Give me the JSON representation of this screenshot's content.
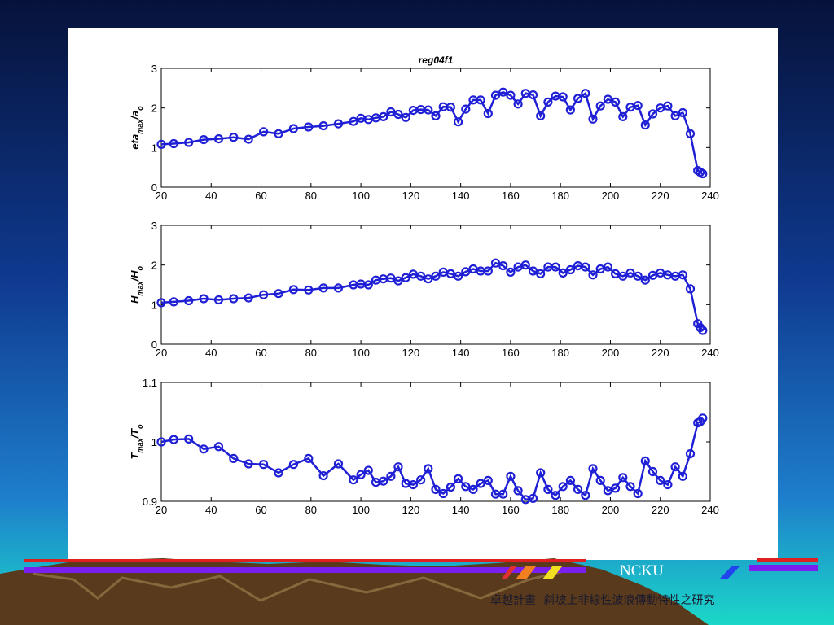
{
  "theme": {
    "background_top": "#0a1850",
    "background_bottom": "#19d6c8",
    "line_color": "#1f1fd6",
    "mountain_color": "#6b4a2a",
    "stripe_red": "#e02020",
    "stripe_purple": "#7a1ff0",
    "stripe_orange": "#f08020",
    "stripe_yellow": "#f0e020"
  },
  "footer": {
    "brand": "NCKU",
    "subtitle": "卓越計畫--斜坡上非線性波浪傳動特性之研究"
  },
  "chart_data": [
    {
      "type": "line",
      "title": "reg04f1",
      "ylabel": {
        "main": "eta",
        "sub1": "max",
        "mid": "/a",
        "sub2": "o"
      },
      "xlabel": "",
      "xlim": [
        20,
        240
      ],
      "ylim": [
        0,
        3
      ],
      "xticks": [
        20,
        40,
        60,
        80,
        100,
        120,
        140,
        160,
        180,
        200,
        220,
        240
      ],
      "yticks": [
        0,
        1,
        2,
        3
      ],
      "series": [
        {
          "x": [
            20,
            25,
            31,
            37,
            43,
            49,
            55,
            61,
            67,
            73,
            79,
            85,
            91,
            97,
            100,
            103,
            106,
            109,
            112,
            115,
            118,
            121,
            124,
            127,
            130,
            133,
            136,
            139,
            142,
            145,
            148,
            151,
            154,
            157,
            160,
            163,
            166,
            169,
            172,
            175,
            178,
            181,
            184,
            187,
            190,
            193,
            196,
            199,
            202,
            205,
            208,
            211,
            214,
            217,
            220,
            223,
            226,
            229,
            232,
            235,
            236,
            237
          ],
          "y": [
            1.08,
            1.1,
            1.13,
            1.2,
            1.22,
            1.26,
            1.21,
            1.4,
            1.35,
            1.48,
            1.52,
            1.55,
            1.6,
            1.66,
            1.74,
            1.71,
            1.75,
            1.78,
            1.9,
            1.84,
            1.76,
            1.94,
            1.96,
            1.95,
            1.8,
            2.03,
            2.02,
            1.65,
            1.97,
            2.2,
            2.2,
            1.86,
            2.32,
            2.4,
            2.32,
            2.1,
            2.37,
            2.33,
            1.8,
            2.15,
            2.3,
            2.28,
            1.95,
            2.24,
            2.37,
            1.72,
            2.05,
            2.22,
            2.15,
            1.78,
            2.02,
            2.06,
            1.57,
            1.85,
            2.0,
            2.05,
            1.8,
            1.88,
            1.35,
            0.42,
            0.38,
            0.34
          ]
        }
      ]
    },
    {
      "type": "line",
      "title": "",
      "ylabel": {
        "main": "H",
        "sub1": "max",
        "mid": "/H",
        "sub2": "o"
      },
      "xlabel": "",
      "xlim": [
        20,
        240
      ],
      "ylim": [
        0,
        3
      ],
      "xticks": [
        20,
        40,
        60,
        80,
        100,
        120,
        140,
        160,
        180,
        200,
        220,
        240
      ],
      "yticks": [
        0,
        1,
        2,
        3
      ],
      "series": [
        {
          "x": [
            20,
            25,
            31,
            37,
            43,
            49,
            55,
            61,
            67,
            73,
            79,
            85,
            91,
            97,
            100,
            103,
            106,
            109,
            112,
            115,
            118,
            121,
            124,
            127,
            130,
            133,
            136,
            139,
            142,
            145,
            148,
            151,
            154,
            157,
            160,
            163,
            166,
            169,
            172,
            175,
            178,
            181,
            184,
            187,
            190,
            193,
            196,
            199,
            202,
            205,
            208,
            211,
            214,
            217,
            220,
            223,
            226,
            229,
            232,
            235,
            236,
            237
          ],
          "y": [
            1.05,
            1.07,
            1.1,
            1.15,
            1.12,
            1.15,
            1.17,
            1.25,
            1.28,
            1.38,
            1.37,
            1.42,
            1.42,
            1.5,
            1.52,
            1.5,
            1.62,
            1.65,
            1.67,
            1.6,
            1.68,
            1.77,
            1.72,
            1.65,
            1.72,
            1.82,
            1.78,
            1.72,
            1.83,
            1.9,
            1.85,
            1.85,
            2.05,
            1.98,
            1.82,
            1.95,
            2.0,
            1.85,
            1.78,
            1.95,
            1.95,
            1.8,
            1.88,
            1.98,
            1.95,
            1.75,
            1.9,
            1.95,
            1.78,
            1.72,
            1.8,
            1.72,
            1.62,
            1.74,
            1.8,
            1.75,
            1.72,
            1.75,
            1.4,
            0.52,
            0.42,
            0.35
          ]
        }
      ]
    },
    {
      "type": "line",
      "title": "",
      "ylabel": {
        "main": "T",
        "sub1": "max",
        "mid": "/T",
        "sub2": "o"
      },
      "xlabel": "",
      "xlim": [
        20,
        240
      ],
      "ylim": [
        0.9,
        1.1
      ],
      "xticks": [
        20,
        40,
        60,
        80,
        100,
        120,
        140,
        160,
        180,
        200,
        220,
        240
      ],
      "yticks": [
        0.9,
        1,
        1.1
      ],
      "series": [
        {
          "x": [
            20,
            25,
            31,
            37,
            43,
            49,
            55,
            61,
            67,
            73,
            79,
            85,
            91,
            97,
            100,
            103,
            106,
            109,
            112,
            115,
            118,
            121,
            124,
            127,
            130,
            133,
            136,
            139,
            142,
            145,
            148,
            151,
            154,
            157,
            160,
            163,
            166,
            169,
            172,
            175,
            178,
            181,
            184,
            187,
            190,
            193,
            196,
            199,
            202,
            205,
            208,
            211,
            214,
            217,
            220,
            223,
            226,
            229,
            232,
            235,
            236,
            237
          ],
          "y": [
            1.0,
            1.004,
            1.005,
            0.988,
            0.992,
            0.972,
            0.963,
            0.962,
            0.948,
            0.962,
            0.972,
            0.943,
            0.963,
            0.936,
            0.945,
            0.952,
            0.932,
            0.934,
            0.942,
            0.958,
            0.93,
            0.928,
            0.936,
            0.955,
            0.92,
            0.913,
            0.924,
            0.938,
            0.925,
            0.92,
            0.93,
            0.935,
            0.912,
            0.912,
            0.942,
            0.918,
            0.903,
            0.905,
            0.948,
            0.92,
            0.91,
            0.925,
            0.935,
            0.92,
            0.91,
            0.955,
            0.935,
            0.918,
            0.922,
            0.94,
            0.925,
            0.913,
            0.968,
            0.95,
            0.935,
            0.928,
            0.958,
            0.942,
            0.98,
            1.032,
            1.034,
            1.04
          ]
        }
      ]
    }
  ]
}
